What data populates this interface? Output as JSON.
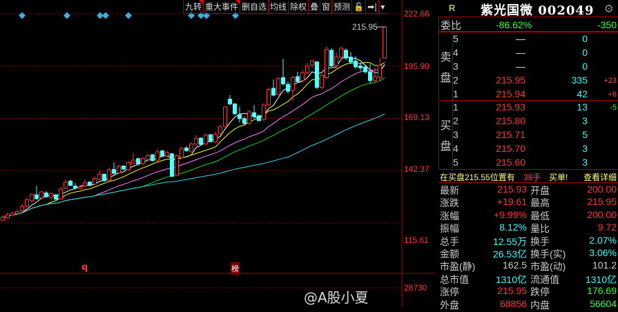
{
  "toolbar": {
    "items": [
      {
        "label": "九转",
        "flag": true
      },
      {
        "label": "重大事件",
        "flag": true
      },
      {
        "label": "删自选"
      },
      {
        "label": "均线"
      },
      {
        "label": "除权"
      },
      {
        "label": "叠"
      },
      {
        "label": "窗"
      },
      {
        "label": "预测"
      }
    ],
    "lock_icon": "lock-open-icon",
    "goto_end_icon": "skip-to-end-icon",
    "dropdown_icon": "chevron-down-icon"
  },
  "axis": {
    "labels": [
      "222.66",
      "195.90",
      "169.13",
      "142.37",
      "115.61"
    ],
    "volume_label": "28730",
    "max_marker": "215.95"
  },
  "markers": {
    "bottom_q": "q",
    "bottom_bang": "榜"
  },
  "colors": {
    "up": "#ff3333",
    "down": "#54ffff",
    "ma5": "#ffffff",
    "ma10": "#ffff00",
    "ma20": "#ff80ff",
    "ma30": "#00e000",
    "ma60": "#30d8f0",
    "diamond": "#3ab0e0"
  },
  "chart_data": {
    "type": "candlestick",
    "ylim": [
      115.61,
      222.66
    ],
    "ma_periods": [
      5,
      10,
      20,
      30,
      60
    ],
    "candles": [
      [
        117,
        119.5,
        116.5,
        118.5
      ],
      [
        118.2,
        121,
        117.8,
        119.8
      ],
      [
        119.5,
        121.5,
        119,
        120.6
      ],
      [
        120.4,
        122.5,
        119.8,
        121.5
      ],
      [
        121.8,
        125.5,
        121,
        124
      ],
      [
        124.2,
        128.5,
        123.5,
        127.5
      ],
      [
        127,
        131,
        125.8,
        130.2
      ],
      [
        130,
        134.5,
        127.5,
        128
      ],
      [
        128.5,
        132,
        128,
        131.5
      ],
      [
        131,
        131.8,
        128.5,
        129
      ],
      [
        128.8,
        131.5,
        127.5,
        130.5
      ],
      [
        130,
        130.5,
        127,
        127.8
      ],
      [
        128,
        134,
        127.5,
        133
      ],
      [
        133.5,
        138,
        133,
        136.5
      ],
      [
        137,
        137.8,
        134.5,
        134.8
      ],
      [
        134.5,
        136,
        133,
        133.5
      ],
      [
        133.2,
        135,
        132.8,
        134
      ],
      [
        134.5,
        138,
        133.8,
        136.2
      ],
      [
        136.5,
        137,
        134.5,
        135
      ],
      [
        135.5,
        139.5,
        135,
        138.4
      ],
      [
        138,
        142.5,
        137.5,
        140.6
      ],
      [
        140.5,
        141,
        136.8,
        137.2
      ],
      [
        137.5,
        144,
        137,
        142.8
      ],
      [
        143,
        146.5,
        140.5,
        141
      ],
      [
        141.2,
        145.5,
        140.8,
        144.5
      ],
      [
        144.8,
        145,
        142.5,
        143.2
      ],
      [
        143,
        147.5,
        142,
        146.5
      ],
      [
        146,
        151.5,
        145.5,
        147.8
      ],
      [
        148.5,
        149,
        145.5,
        145.9
      ],
      [
        146,
        149.5,
        145,
        148.6
      ],
      [
        148,
        151,
        147.5,
        150.2
      ],
      [
        150.5,
        151,
        147,
        147.5
      ],
      [
        147.8,
        153.5,
        147,
        152
      ],
      [
        152.5,
        153,
        149.5,
        149.8
      ],
      [
        150,
        152.5,
        149,
        151.5
      ],
      [
        151,
        151.5,
        139,
        139.5
      ],
      [
        140,
        150.8,
        139.5,
        150
      ],
      [
        149,
        154.5,
        148.5,
        153.8
      ],
      [
        154,
        155,
        152,
        152.6
      ],
      [
        152,
        157,
        151.5,
        156
      ],
      [
        156,
        160.5,
        155,
        158.8
      ],
      [
        159,
        159.5,
        155.5,
        155.9
      ],
      [
        156,
        161.5,
        155.5,
        160.5
      ],
      [
        160.8,
        161,
        156.8,
        157.2
      ],
      [
        157,
        162.5,
        156.5,
        161
      ],
      [
        161.5,
        166,
        160.5,
        164.8
      ],
      [
        165,
        175.5,
        164.5,
        175
      ],
      [
        179,
        181,
        175.8,
        176.5
      ],
      [
        176.5,
        177,
        171,
        171.5
      ],
      [
        171,
        175,
        167,
        169
      ],
      [
        169,
        170,
        166,
        166.5
      ],
      [
        166.5,
        173.5,
        166,
        172.5
      ],
      [
        172,
        176,
        169,
        170
      ],
      [
        170.5,
        171,
        167.5,
        168
      ],
      [
        168.5,
        177,
        168,
        176
      ],
      [
        176,
        185,
        175.5,
        184
      ],
      [
        184.5,
        189,
        180.5,
        181
      ],
      [
        181.5,
        190.5,
        181,
        189.5
      ],
      [
        190,
        199.5,
        186,
        186.8
      ],
      [
        186.5,
        188,
        182,
        183
      ],
      [
        183.5,
        191,
        178,
        190
      ],
      [
        190.5,
        193,
        187.5,
        188
      ],
      [
        188.5,
        194,
        188,
        192.5
      ],
      [
        192.5,
        197.5,
        191.5,
        196
      ],
      [
        196.5,
        199,
        195,
        198.5
      ],
      [
        198,
        198.5,
        184,
        185
      ],
      [
        185,
        192,
        184,
        191
      ],
      [
        190,
        206,
        189,
        204.5
      ],
      [
        204,
        205,
        195.5,
        196
      ],
      [
        196,
        203,
        194,
        200.5
      ],
      [
        200.5,
        206,
        199,
        205
      ],
      [
        204,
        205,
        199,
        200
      ],
      [
        200.5,
        203,
        197,
        198
      ],
      [
        198.5,
        201,
        194.5,
        195.5
      ],
      [
        196,
        198,
        193.5,
        195
      ],
      [
        195.5,
        196,
        192,
        193
      ],
      [
        193,
        197,
        187,
        188.5
      ],
      [
        188.5,
        195,
        187.5,
        190.5
      ],
      [
        190,
        200,
        188,
        196.32
      ],
      [
        200,
        215.95,
        200,
        215.93
      ]
    ]
  },
  "quote": {
    "r_label": "R",
    "title": "紫光国微 002049",
    "settings_icon": "gear-icon",
    "weibi": {
      "label": "委比",
      "pct": "-86.62%",
      "diff": "-350"
    },
    "sell_label": [
      "卖",
      "盘"
    ],
    "buy_label": [
      "买",
      "盘"
    ],
    "sell": [
      {
        "lvl": "5",
        "price": "—",
        "vol": "0",
        "chg": ""
      },
      {
        "lvl": "4",
        "price": "—",
        "vol": "0",
        "chg": ""
      },
      {
        "lvl": "3",
        "price": "—",
        "vol": "0",
        "chg": ""
      },
      {
        "lvl": "2",
        "price": "215.95",
        "vol": "335",
        "chg": "+23"
      },
      {
        "lvl": "1",
        "price": "215.94",
        "vol": "42",
        "chg": "+6"
      }
    ],
    "buy": [
      {
        "lvl": "1",
        "price": "215.93",
        "vol": "13",
        "chg": "-5"
      },
      {
        "lvl": "2",
        "price": "215.80",
        "vol": "3",
        "chg": ""
      },
      {
        "lvl": "3",
        "price": "215.71",
        "vol": "5",
        "chg": ""
      },
      {
        "lvl": "4",
        "price": "215.70",
        "vol": "3",
        "chg": ""
      },
      {
        "lvl": "5",
        "price": "215.60",
        "vol": "3",
        "chg": ""
      }
    ],
    "notice": {
      "text": "在买盘215.55位置有",
      "hands": "38手",
      "suffix": "买单!",
      "link": "查看详细"
    },
    "stats": [
      {
        "k1": "最新",
        "v1": "215.93",
        "c1": "#ff3333",
        "k2": "开盘",
        "v2": "200.00",
        "c2": "#ff3333"
      },
      {
        "k1": "涨跌",
        "v1": "+19.61",
        "c1": "#ff3333",
        "k2": "最高",
        "v2": "215.95",
        "c2": "#ff3333"
      },
      {
        "k1": "涨幅",
        "v1": "+9.99%",
        "c1": "#ff3333",
        "k2": "最低",
        "v2": "200.00",
        "c2": "#ff3333"
      },
      {
        "k1": "振幅",
        "v1": "8.12%",
        "c1": "#33ffff",
        "k2": "量比",
        "v2": "9.72",
        "c2": "#ff3333"
      },
      {
        "k1": "总手",
        "v1": "12.55万",
        "c1": "#33ffff",
        "k2": "换手",
        "v2": "2.07%",
        "c2": "#33ffff"
      },
      {
        "k1": "金额",
        "v1": "26.53亿",
        "c1": "#33ffff",
        "k2": "换手(实)",
        "v2": "3.06%",
        "c2": "#33ffff"
      },
      {
        "k1": "市盈(静)",
        "v1": "162.5",
        "c1": "#cccccc",
        "k2": "市盈(动)",
        "v2": "101.2",
        "c2": "#cccccc"
      },
      {
        "k1": "总市值",
        "v1": "1310亿",
        "c1": "#33ffff",
        "k2": "流通值",
        "v2": "1310亿",
        "c2": "#33ffff"
      },
      {
        "k1": "涨停",
        "v1": "215.95",
        "c1": "#ff3333",
        "k2": "跌停",
        "v2": "176.69",
        "c2": "#33ff33"
      },
      {
        "k1": "外盘",
        "v1": "68856",
        "c1": "#ff3333",
        "k2": "内盘",
        "v2": "56604",
        "c2": "#33ff33"
      }
    ]
  },
  "watermark": "@A股小夏"
}
